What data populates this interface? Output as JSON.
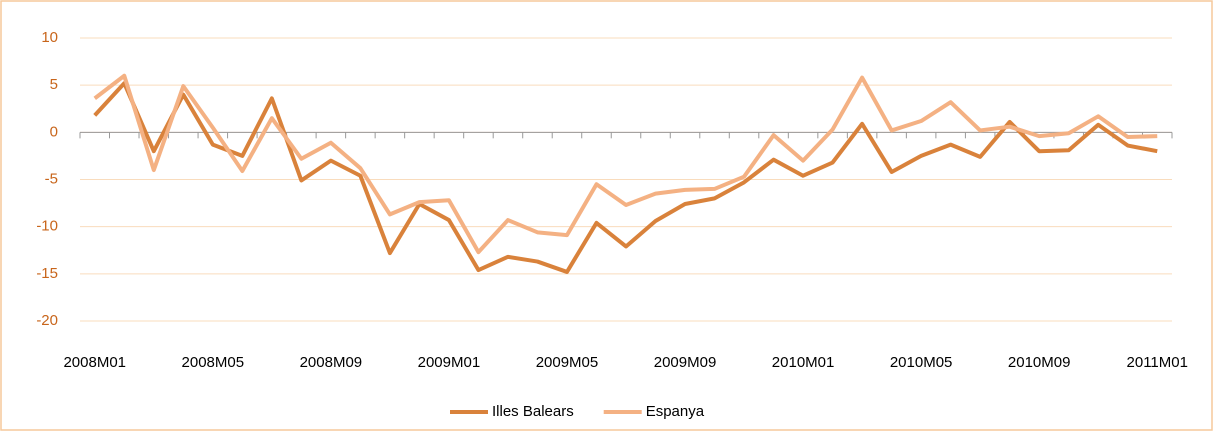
{
  "chart_data": {
    "type": "line",
    "categories": [
      "2008M01",
      null,
      null,
      null,
      "2008M05",
      null,
      null,
      null,
      "2008M09",
      null,
      null,
      null,
      "2009M01",
      null,
      null,
      null,
      "2009M05",
      null,
      null,
      null,
      "2009M09",
      null,
      null,
      null,
      "2010M01",
      null,
      null,
      null,
      "2010M05",
      null,
      null,
      null,
      "2010M09",
      null,
      null,
      null,
      "2011M01"
    ],
    "series": [
      {
        "name": "Illes Balears",
        "color": "#d9823b",
        "values": [
          1.8,
          5.2,
          -2,
          4,
          -1.3,
          -2.5,
          3.6,
          -5.1,
          -3,
          -4.6,
          -12.8,
          -7.6,
          -9.3,
          -14.6,
          -13.2,
          -13.7,
          -14.8,
          -9.6,
          -12.1,
          -9.4,
          -7.6,
          -7,
          -5.3,
          -2.9,
          -4.6,
          -3.2,
          0.9,
          -4.2,
          -2.5,
          -1.3,
          -2.6,
          1.1,
          -2,
          -1.9,
          0.8,
          -1.4,
          -2
        ]
      },
      {
        "name": "Espanya",
        "color": "#f4b183",
        "values": [
          3.6,
          6,
          -4,
          4.9,
          0.5,
          -4.1,
          1.5,
          -2.8,
          -1.1,
          -3.8,
          -8.7,
          -7.4,
          -7.2,
          -12.7,
          -9.3,
          -10.6,
          -10.9,
          -5.5,
          -7.7,
          -6.5,
          -6.1,
          -6,
          -4.7,
          -0.3,
          -3,
          0.3,
          5.8,
          0.2,
          1.2,
          3.2,
          0.2,
          0.6,
          -0.4,
          -0.1,
          1.7,
          -0.5,
          -0.4
        ]
      }
    ],
    "ylim": [
      -20,
      10
    ],
    "yticks": [
      10,
      5,
      0,
      -5,
      -10,
      -15,
      -20
    ],
    "grid": true,
    "legend": "bottom"
  }
}
